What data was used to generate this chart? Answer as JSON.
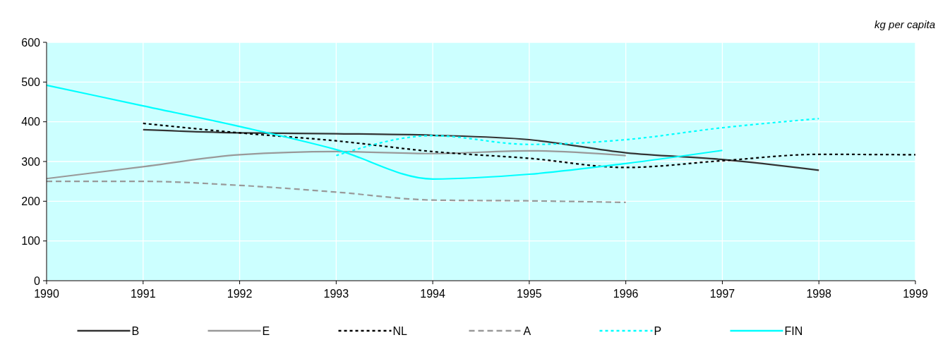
{
  "chart_data": {
    "type": "line",
    "ylabel": "kg per capita",
    "x": [
      1990,
      1991,
      1992,
      1993,
      1994,
      1995,
      1996,
      1997,
      1998,
      1999
    ],
    "xlim": [
      1990,
      1999
    ],
    "xticks": [
      1990,
      1991,
      1992,
      1993,
      1994,
      1995,
      1996,
      1997,
      1998,
      1999
    ],
    "ylim": [
      0,
      600
    ],
    "yticks": [
      0,
      100,
      200,
      300,
      400,
      500,
      600
    ],
    "grid": true,
    "legend": "bottom",
    "series": [
      {
        "name": "B",
        "color": "#333333",
        "line_style": "solid",
        "values": [
          null,
          380,
          372,
          370,
          366,
          355,
          322,
          305,
          278,
          null
        ]
      },
      {
        "name": "E",
        "color": "#999999",
        "line_style": "solid",
        "values": [
          257,
          287,
          317,
          325,
          320,
          327,
          315,
          null,
          null,
          null
        ]
      },
      {
        "name": "NL",
        "color": "#000000",
        "line_style": "dotted",
        "values": [
          null,
          396,
          372,
          352,
          325,
          308,
          285,
          302,
          318,
          317
        ]
      },
      {
        "name": "A",
        "color": "#999999",
        "line_style": "dashed",
        "values": [
          250,
          250,
          240,
          223,
          203,
          201,
          197,
          null,
          null,
          null
        ]
      },
      {
        "name": "P",
        "color": "#00ffff",
        "line_style": "dotted",
        "values": [
          null,
          null,
          null,
          315,
          365,
          343,
          355,
          385,
          408,
          null
        ]
      },
      {
        "name": "FIN",
        "color": "#00ffff",
        "line_style": "solid",
        "values": [
          492,
          440,
          388,
          330,
          256,
          268,
          295,
          328,
          null,
          null
        ]
      }
    ]
  }
}
